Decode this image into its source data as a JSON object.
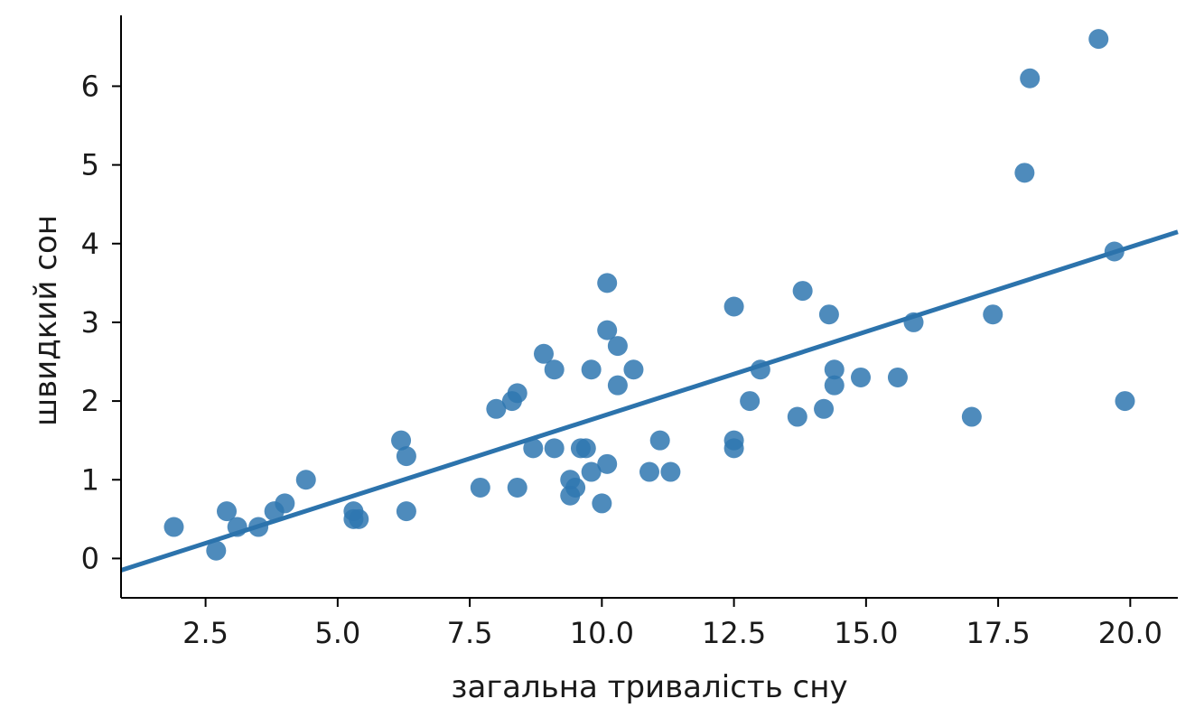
{
  "chart_data": {
    "type": "scatter",
    "xlabel": "загальна тривалість сну",
    "ylabel": "швидкий сон",
    "xlim": [
      0.9,
      20.9
    ],
    "ylim": [
      -0.5,
      6.9
    ],
    "x_ticks": [
      {
        "value": 2.5,
        "label": "2.5"
      },
      {
        "value": 5.0,
        "label": "5.0"
      },
      {
        "value": 7.5,
        "label": "7.5"
      },
      {
        "value": 10.0,
        "label": "10.0"
      },
      {
        "value": 12.5,
        "label": "12.5"
      },
      {
        "value": 15.0,
        "label": "15.0"
      },
      {
        "value": 17.5,
        "label": "17.5"
      },
      {
        "value": 20.0,
        "label": "20.0"
      }
    ],
    "y_ticks": [
      {
        "value": 0,
        "label": "0"
      },
      {
        "value": 1,
        "label": "1"
      },
      {
        "value": 2,
        "label": "2"
      },
      {
        "value": 3,
        "label": "3"
      },
      {
        "value": 4,
        "label": "4"
      },
      {
        "value": 5,
        "label": "5"
      },
      {
        "value": 6,
        "label": "6"
      }
    ],
    "grid": false,
    "points": [
      {
        "x": 1.9,
        "y": 0.4
      },
      {
        "x": 2.7,
        "y": 0.1
      },
      {
        "x": 2.9,
        "y": 0.6
      },
      {
        "x": 3.1,
        "y": 0.4
      },
      {
        "x": 3.5,
        "y": 0.4
      },
      {
        "x": 3.8,
        "y": 0.6
      },
      {
        "x": 4.0,
        "y": 0.7
      },
      {
        "x": 4.4,
        "y": 1.0
      },
      {
        "x": 5.3,
        "y": 0.6
      },
      {
        "x": 5.3,
        "y": 0.5
      },
      {
        "x": 5.4,
        "y": 0.5
      },
      {
        "x": 6.2,
        "y": 1.5
      },
      {
        "x": 6.3,
        "y": 1.3
      },
      {
        "x": 6.3,
        "y": 0.6
      },
      {
        "x": 7.7,
        "y": 0.9
      },
      {
        "x": 8.0,
        "y": 1.9
      },
      {
        "x": 8.3,
        "y": 2.0
      },
      {
        "x": 8.4,
        "y": 2.1
      },
      {
        "x": 8.4,
        "y": 0.9
      },
      {
        "x": 8.7,
        "y": 1.4
      },
      {
        "x": 8.9,
        "y": 2.6
      },
      {
        "x": 9.1,
        "y": 2.4
      },
      {
        "x": 9.1,
        "y": 1.4
      },
      {
        "x": 9.4,
        "y": 1.0
      },
      {
        "x": 9.4,
        "y": 0.8
      },
      {
        "x": 9.5,
        "y": 0.9
      },
      {
        "x": 9.6,
        "y": 1.4
      },
      {
        "x": 9.7,
        "y": 1.4
      },
      {
        "x": 9.8,
        "y": 2.4
      },
      {
        "x": 9.8,
        "y": 1.1
      },
      {
        "x": 10.0,
        "y": 0.7
      },
      {
        "x": 10.1,
        "y": 3.5
      },
      {
        "x": 10.1,
        "y": 2.9
      },
      {
        "x": 10.1,
        "y": 1.2
      },
      {
        "x": 10.3,
        "y": 2.7
      },
      {
        "x": 10.3,
        "y": 2.2
      },
      {
        "x": 10.6,
        "y": 2.4
      },
      {
        "x": 10.9,
        "y": 1.1
      },
      {
        "x": 11.1,
        "y": 1.5
      },
      {
        "x": 11.3,
        "y": 1.1
      },
      {
        "x": 12.5,
        "y": 3.2
      },
      {
        "x": 12.5,
        "y": 1.5
      },
      {
        "x": 12.5,
        "y": 1.4
      },
      {
        "x": 12.8,
        "y": 2.0
      },
      {
        "x": 13.0,
        "y": 2.4
      },
      {
        "x": 13.7,
        "y": 1.8
      },
      {
        "x": 13.8,
        "y": 3.4
      },
      {
        "x": 14.2,
        "y": 1.9
      },
      {
        "x": 14.3,
        "y": 3.1
      },
      {
        "x": 14.4,
        "y": 2.4
      },
      {
        "x": 14.4,
        "y": 2.2
      },
      {
        "x": 14.9,
        "y": 2.3
      },
      {
        "x": 15.6,
        "y": 2.3
      },
      {
        "x": 15.9,
        "y": 3.0
      },
      {
        "x": 17.0,
        "y": 1.8
      },
      {
        "x": 17.4,
        "y": 3.1
      },
      {
        "x": 18.0,
        "y": 4.9
      },
      {
        "x": 18.1,
        "y": 6.1
      },
      {
        "x": 19.4,
        "y": 6.6
      },
      {
        "x": 19.7,
        "y": 3.9
      },
      {
        "x": 19.9,
        "y": 2.0
      }
    ],
    "regression_line": {
      "x": [
        0.9,
        20.9
      ],
      "y": [
        -0.15,
        4.15
      ]
    },
    "colors": {
      "points": "#2f77b0",
      "line": "#2c73ac",
      "axes": "#000000"
    }
  }
}
